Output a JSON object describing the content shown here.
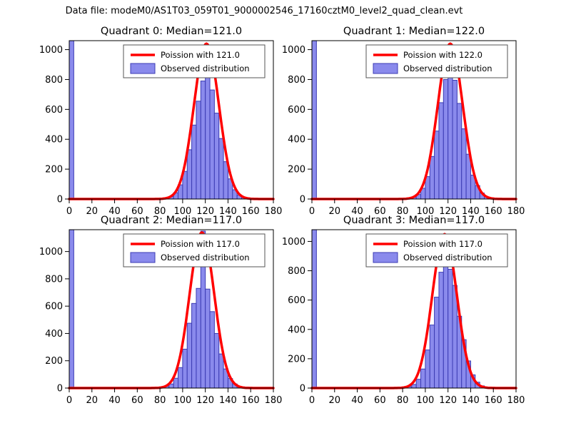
{
  "suptitle": "Data file: modeM0/AS1T03_059T01_9000002546_17160cztM0_level2_quad_clean.evt",
  "colors": {
    "background": "#ffffff",
    "bar_fill": "#8a8aec",
    "bar_edge": "#3c3cb4",
    "curve": "#ff0000",
    "text": "#000000",
    "legend_border": "#555555"
  },
  "chart_data": [
    {
      "type": "bar",
      "subtype": "histogram-with-fit-line",
      "title": "Quadrant 0: Median=121.0",
      "median": 121.0,
      "legend": {
        "curve_label": "Poission with 121.0",
        "bars_label": "Observed distribution",
        "position": "upper center-right"
      },
      "xlim": [
        0,
        180
      ],
      "ylim": [
        0,
        1060
      ],
      "xticks": [
        0,
        20,
        40,
        60,
        80,
        100,
        120,
        140,
        160,
        180
      ],
      "yticks": [
        0,
        200,
        400,
        600,
        800,
        1000
      ],
      "grid": false,
      "bin_start": 0,
      "bin_width": 4,
      "bar_values": [
        1400,
        0,
        0,
        0,
        0,
        0,
        0,
        0,
        0,
        0,
        0,
        0,
        0,
        0,
        0,
        0,
        0,
        0,
        0,
        0,
        3,
        7,
        16,
        42,
        95,
        185,
        330,
        495,
        655,
        790,
        815,
        730,
        575,
        405,
        250,
        135,
        62,
        26,
        10,
        4,
        2,
        0,
        0,
        0,
        0
      ],
      "curve": {
        "shape": "poisson",
        "center": 121,
        "sigma": 11,
        "peak": 1040
      }
    },
    {
      "type": "bar",
      "subtype": "histogram-with-fit-line",
      "title": "Quadrant 1: Median=122.0",
      "median": 122.0,
      "legend": {
        "curve_label": "Poission with 122.0",
        "bars_label": "Observed distribution",
        "position": "upper center-right"
      },
      "xlim": [
        0,
        180
      ],
      "ylim": [
        0,
        1060
      ],
      "xticks": [
        0,
        20,
        40,
        60,
        80,
        100,
        120,
        140,
        160,
        180
      ],
      "yticks": [
        0,
        200,
        400,
        600,
        800,
        1000
      ],
      "grid": false,
      "bin_start": 0,
      "bin_width": 4,
      "bar_values": [
        1400,
        0,
        0,
        0,
        0,
        0,
        0,
        0,
        0,
        0,
        0,
        0,
        0,
        0,
        0,
        0,
        0,
        0,
        0,
        0,
        2,
        5,
        12,
        30,
        72,
        150,
        285,
        455,
        645,
        800,
        820,
        795,
        640,
        470,
        300,
        160,
        90,
        40,
        15,
        6,
        3,
        0,
        0,
        0,
        0
      ],
      "curve": {
        "shape": "poisson",
        "center": 122,
        "sigma": 11,
        "peak": 1040
      }
    },
    {
      "type": "bar",
      "subtype": "histogram-with-fit-line",
      "title": "Quadrant 2: Median=117.0",
      "median": 117.0,
      "legend": {
        "curve_label": "Poission with 117.0",
        "bars_label": "Observed distribution",
        "position": "upper center-right"
      },
      "xlim": [
        0,
        180
      ],
      "ylim": [
        0,
        1160
      ],
      "xticks": [
        0,
        20,
        40,
        60,
        80,
        100,
        120,
        140,
        160,
        180
      ],
      "yticks": [
        0,
        200,
        400,
        600,
        800,
        1000
      ],
      "grid": false,
      "bin_start": 0,
      "bin_width": 4,
      "bar_values": [
        1400,
        0,
        0,
        0,
        0,
        0,
        0,
        0,
        0,
        0,
        0,
        0,
        0,
        0,
        0,
        0,
        0,
        0,
        0,
        0,
        5,
        12,
        30,
        72,
        150,
        285,
        475,
        620,
        730,
        1150,
        725,
        560,
        400,
        250,
        140,
        70,
        30,
        12,
        5,
        2,
        0,
        0,
        0,
        0,
        0
      ],
      "curve": {
        "shape": "poisson",
        "center": 117,
        "sigma": 10.8,
        "peak": 1140
      }
    },
    {
      "type": "bar",
      "subtype": "histogram-with-fit-line",
      "title": "Quadrant 3: Median=117.0",
      "median": 117.0,
      "legend": {
        "curve_label": "Poission with 117.0",
        "bars_label": "Observed distribution",
        "position": "upper center-right"
      },
      "xlim": [
        0,
        180
      ],
      "ylim": [
        0,
        1080
      ],
      "xticks": [
        0,
        20,
        40,
        60,
        80,
        100,
        120,
        140,
        160,
        180
      ],
      "yticks": [
        0,
        200,
        400,
        600,
        800,
        1000
      ],
      "grid": false,
      "bin_start": 0,
      "bin_width": 4,
      "bar_values": [
        1400,
        0,
        0,
        0,
        0,
        0,
        0,
        0,
        0,
        0,
        0,
        0,
        0,
        0,
        0,
        0,
        0,
        0,
        0,
        0,
        4,
        10,
        25,
        60,
        130,
        260,
        430,
        620,
        790,
        1050,
        810,
        700,
        490,
        330,
        185,
        90,
        40,
        15,
        6,
        2,
        0,
        0,
        0,
        0,
        0
      ],
      "curve": {
        "shape": "poisson",
        "center": 117,
        "sigma": 10.8,
        "peak": 1050
      }
    }
  ]
}
